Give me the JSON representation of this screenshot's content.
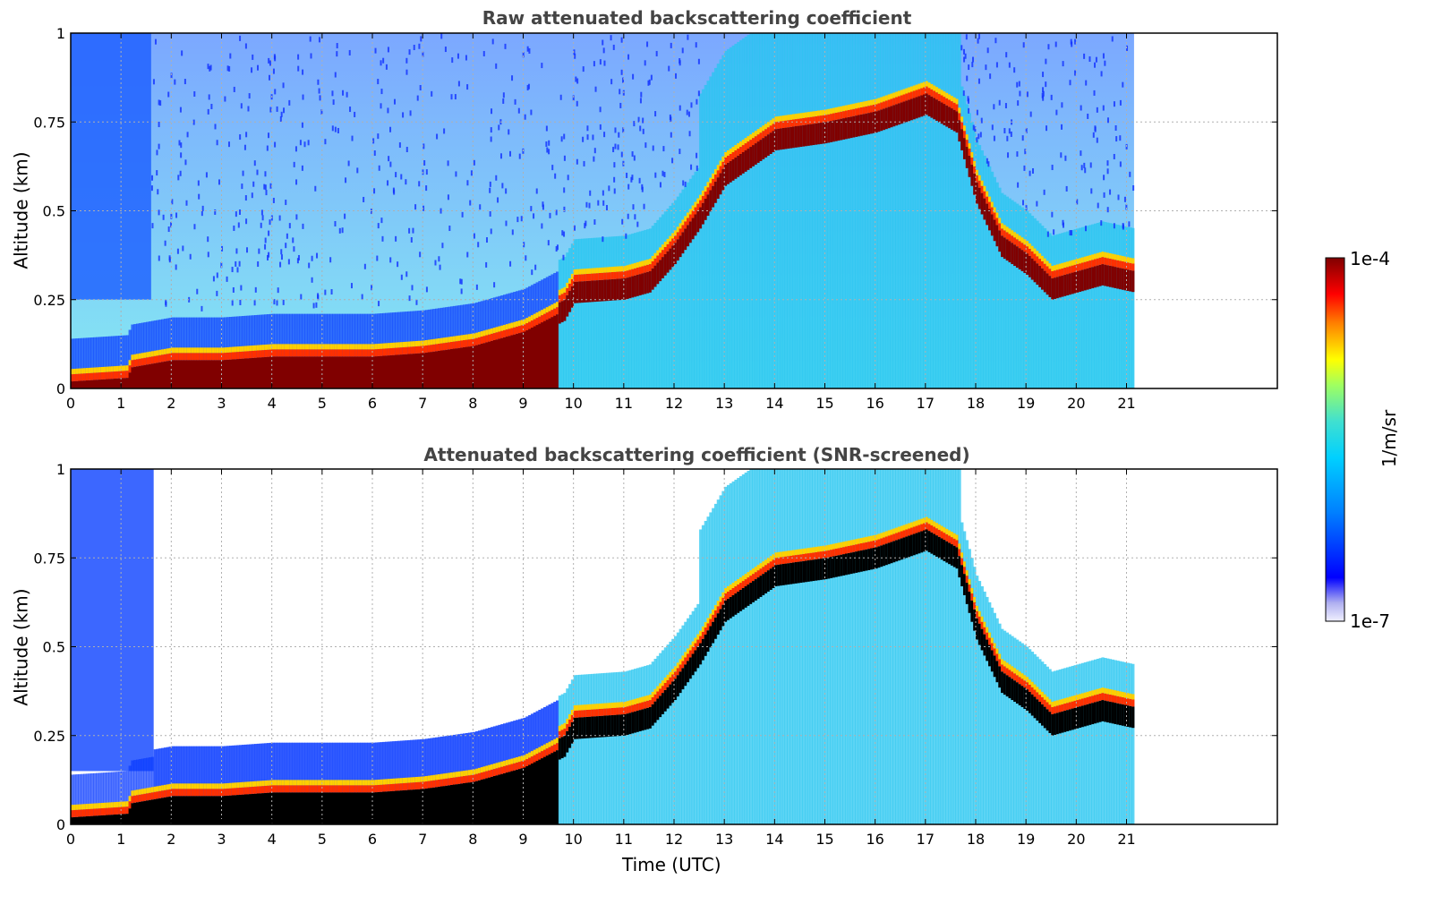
{
  "chart_data": [
    {
      "type": "heatmap",
      "title": "Raw attenuated backscattering coefficient",
      "ylabel": "Altitude (km)",
      "xlabel": "",
      "xlim": [
        0,
        24
      ],
      "ylim": [
        0,
        1
      ],
      "x_ticks": [
        "0",
        "1",
        "2",
        "3",
        "4",
        "5",
        "6",
        "7",
        "8",
        "9",
        "10",
        "11",
        "12",
        "13",
        "14",
        "15",
        "16",
        "17",
        "18",
        "19",
        "20",
        "21"
      ],
      "y_ticks": [
        "0",
        "0.25",
        "0.5",
        "0.75",
        "1"
      ],
      "data_end_time": 21.15,
      "grid": true,
      "boundary_layer_top_km": [
        [
          0,
          0.02
        ],
        [
          1.1,
          0.03
        ],
        [
          1.2,
          0.06
        ],
        [
          2,
          0.08
        ],
        [
          3,
          0.08
        ],
        [
          4,
          0.09
        ],
        [
          5,
          0.09
        ],
        [
          6,
          0.09
        ],
        [
          7,
          0.1
        ],
        [
          8,
          0.12
        ],
        [
          9,
          0.16
        ],
        [
          9.8,
          0.22
        ],
        [
          10,
          0.27
        ],
        [
          11,
          0.28
        ],
        [
          11.5,
          0.3
        ],
        [
          12,
          0.38
        ],
        [
          12.5,
          0.48
        ],
        [
          13,
          0.6
        ],
        [
          13.5,
          0.65
        ],
        [
          14,
          0.7
        ],
        [
          15,
          0.72
        ],
        [
          16,
          0.75
        ],
        [
          17,
          0.8
        ],
        [
          17.6,
          0.75
        ],
        [
          18,
          0.55
        ],
        [
          18.5,
          0.4
        ],
        [
          19,
          0.35
        ],
        [
          19.5,
          0.28
        ],
        [
          20,
          0.3
        ],
        [
          20.5,
          0.32
        ],
        [
          21.15,
          0.3
        ]
      ]
    },
    {
      "type": "heatmap",
      "title": "Attenuated backscattering coefficient (SNR-screened)",
      "ylabel": "Altitude (km)",
      "xlabel": "Time (UTC)",
      "xlim": [
        0,
        24
      ],
      "ylim": [
        0,
        1
      ],
      "x_ticks": [
        "0",
        "1",
        "2",
        "3",
        "4",
        "5",
        "6",
        "7",
        "8",
        "9",
        "10",
        "11",
        "12",
        "13",
        "14",
        "15",
        "16",
        "17",
        "18",
        "19",
        "20",
        "21"
      ],
      "y_ticks": [
        "0",
        "0.25",
        "0.5",
        "0.75",
        "1"
      ],
      "data_end_time": 21.15,
      "grid": true
    }
  ],
  "colorbar": {
    "label": "1/m/sr",
    "max_label": "1e-4",
    "min_label": "1e-7",
    "scale": "log",
    "colormap": "jet"
  },
  "colors": {
    "title": "#444444",
    "grid": "#b0b0b0",
    "saturated": "#800000",
    "screened_saturated": "#000000"
  }
}
